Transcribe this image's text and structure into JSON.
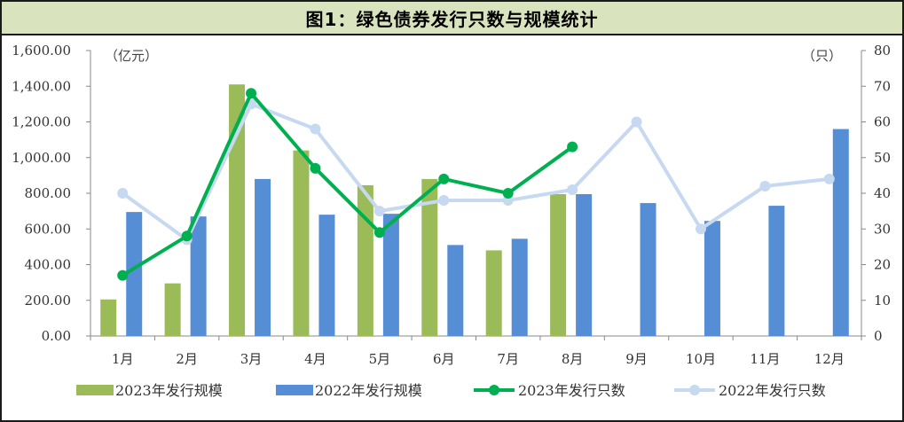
{
  "title": "图1：绿色债券发行只数与规模统计",
  "left_unit": "（亿元）",
  "right_unit": "（只）",
  "colors": {
    "bar2023": "#9bbb59",
    "bar2022": "#558ed5",
    "line2023": "#00b050",
    "line2022": "#c6d9f1",
    "title_bg": "#d9e4bf"
  },
  "chart_data": {
    "type": "bar",
    "categories": [
      "1月",
      "2月",
      "3月",
      "4月",
      "5月",
      "6月",
      "7月",
      "8月",
      "9月",
      "10月",
      "11月",
      "12月"
    ],
    "y_left": {
      "ylim": [
        0,
        1600
      ],
      "ticks": [
        "0.00",
        "200.00",
        "400.00",
        "600.00",
        "800.00",
        "1,000.00",
        "1,200.00",
        "1,400.00",
        "1,600.00"
      ]
    },
    "y_right": {
      "ylim": [
        0,
        80
      ],
      "ticks": [
        "0",
        "10",
        "20",
        "30",
        "40",
        "50",
        "60",
        "70",
        "80"
      ]
    },
    "series": [
      {
        "name": "2023年发行规模",
        "type": "bar",
        "axis": "left",
        "values": [
          205,
          295,
          1410,
          1040,
          845,
          880,
          480,
          795,
          null,
          null,
          null,
          null
        ]
      },
      {
        "name": "2022年发行规模",
        "type": "bar",
        "axis": "left",
        "values": [
          695,
          670,
          880,
          680,
          685,
          510,
          545,
          795,
          745,
          645,
          730,
          1160
        ]
      },
      {
        "name": "2023年发行只数",
        "type": "line",
        "axis": "right",
        "values": [
          17,
          28,
          68,
          47,
          29,
          44,
          40,
          53,
          null,
          null,
          null,
          null
        ]
      },
      {
        "name": "2022年发行只数",
        "type": "line",
        "axis": "right",
        "values": [
          40,
          27,
          65,
          58,
          35,
          38,
          38,
          41,
          60,
          30,
          42,
          44
        ]
      }
    ]
  }
}
